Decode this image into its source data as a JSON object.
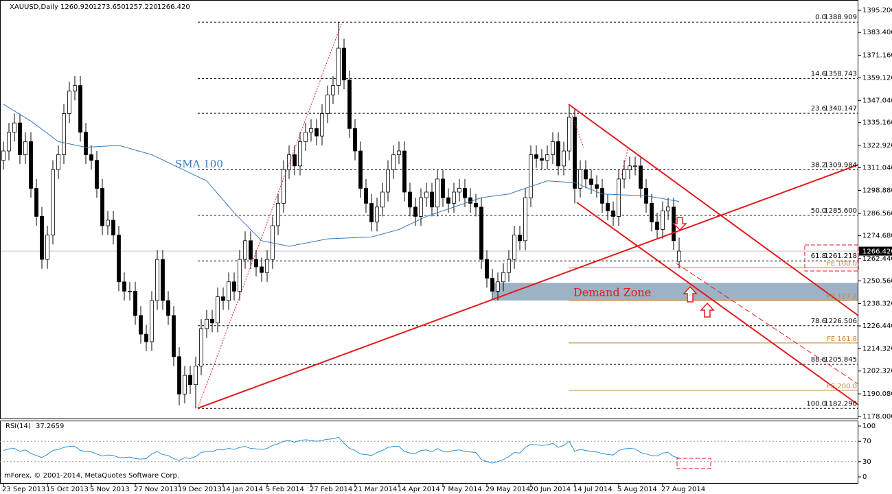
{
  "chart_data": [
    {
      "type": "candlestick",
      "symbol": "XAUUSD,Daily",
      "header_values": [
        {
          "value": 1260.92,
          "label": "1260.920"
        },
        {
          "value": 1273.65,
          "label": "1273.650"
        },
        {
          "value": 1257.22,
          "label": "1257.220"
        },
        {
          "value": 1266.42,
          "label": "1266.420"
        }
      ],
      "categories": [
        "23 Sep 2013",
        null,
        null,
        null,
        null,
        null,
        null,
        null,
        "15 Oct 2013",
        null,
        null,
        null,
        null,
        null,
        null,
        null,
        "5 Nov 2013",
        null,
        null,
        null,
        null,
        null,
        null,
        null,
        "27 Nov 2013",
        null,
        null,
        null,
        null,
        null,
        null,
        null,
        "19 Dec 2013",
        null,
        null,
        null,
        null,
        null,
        null,
        null,
        "14 Jan 2014",
        null,
        null,
        null,
        null,
        null,
        null,
        null,
        "5 Feb 2014",
        null,
        null,
        null,
        null,
        null,
        null,
        null,
        "27 Feb 2014",
        null,
        null,
        null,
        null,
        null,
        null,
        null,
        "21 Mar 2014",
        null,
        null,
        null,
        null,
        null,
        null,
        null,
        "14 Apr 2014",
        null,
        null,
        null,
        null,
        null,
        null,
        null,
        "7 May 2014",
        null,
        null,
        null,
        null,
        null,
        null,
        null,
        "29 May 2014",
        null,
        null,
        null,
        null,
        null,
        null,
        null,
        "20 Jun 2014",
        null,
        null,
        null,
        null,
        null,
        null,
        null,
        "14 Jul 2014",
        null,
        null,
        null,
        null,
        null,
        null,
        null,
        "5 Aug 2014",
        null,
        null,
        null,
        null,
        null,
        null,
        null,
        "27 Aug 2014",
        null,
        null,
        null
      ],
      "open": [
        1315,
        1320,
        1330,
        1335,
        1318,
        1325,
        1300,
        1285,
        1262,
        1275,
        1310,
        1318,
        1340,
        1352,
        1355,
        1330,
        1318,
        1315,
        1300,
        1280,
        1283,
        1275,
        1250,
        1245,
        1245,
        1232,
        1222,
        1218,
        1240,
        1262,
        1240,
        1232,
        1210,
        1190,
        1200,
        1195,
        1205,
        1225,
        1230,
        1228,
        1242,
        1240,
        1250,
        1245,
        1262,
        1272,
        1262,
        1258,
        1255,
        1262,
        1280,
        1292,
        1310,
        1318,
        1312,
        1325,
        1330,
        1332,
        1328,
        1340,
        1350,
        1355,
        1375,
        1358,
        1332,
        1320,
        1300,
        1292,
        1282,
        1290,
        1298,
        1310,
        1318,
        1320,
        1298,
        1290,
        1285,
        1295,
        1298,
        1290,
        1305,
        1295,
        1292,
        1298,
        1300,
        1295,
        1292,
        1290,
        1262,
        1252,
        1245,
        1250,
        1255,
        1262,
        1275,
        1272,
        1295,
        1318,
        1316,
        1315,
        1318,
        1325,
        1312,
        1320,
        1338,
        1300,
        1310,
        1305,
        1302,
        1300,
        1292,
        1288,
        1285,
        1305,
        1310,
        1312,
        1312,
        1300,
        1292,
        1282,
        1278,
        1288,
        1290,
        1260.92
      ],
      "high": [
        1325,
        1335,
        1340,
        1340,
        1330,
        1330,
        1305,
        1290,
        1280,
        1315,
        1323,
        1345,
        1357,
        1360,
        1360,
        1335,
        1323,
        1320,
        1305,
        1288,
        1288,
        1280,
        1255,
        1250,
        1250,
        1237,
        1227,
        1245,
        1267,
        1267,
        1245,
        1237,
        1215,
        1205,
        1205,
        1210,
        1230,
        1235,
        1235,
        1247,
        1247,
        1255,
        1255,
        1267,
        1277,
        1277,
        1267,
        1263,
        1267,
        1285,
        1297,
        1315,
        1323,
        1323,
        1330,
        1335,
        1337,
        1337,
        1345,
        1355,
        1360,
        1388.909,
        1380,
        1363,
        1337,
        1325,
        1305,
        1297,
        1295,
        1303,
        1315,
        1323,
        1325,
        1325,
        1303,
        1295,
        1300,
        1303,
        1303,
        1310,
        1310,
        1300,
        1303,
        1305,
        1305,
        1300,
        1297,
        1295,
        1267,
        1257,
        1255,
        1260,
        1267,
        1280,
        1280,
        1300,
        1323,
        1323,
        1321,
        1323,
        1330,
        1330,
        1325,
        1345,
        1343,
        1315,
        1315,
        1310,
        1307,
        1305,
        1297,
        1293,
        1310,
        1315,
        1317,
        1317,
        1317,
        1305,
        1297,
        1287,
        1293,
        1295,
        1295,
        1273.65
      ],
      "low": [
        1310,
        1315,
        1325,
        1313,
        1313,
        1295,
        1280,
        1257,
        1257,
        1270,
        1305,
        1313,
        1335,
        1347,
        1325,
        1313,
        1310,
        1295,
        1275,
        1275,
        1270,
        1245,
        1240,
        1240,
        1227,
        1217,
        1213,
        1213,
        1235,
        1235,
        1227,
        1205,
        1184,
        1185,
        1190,
        1182.29,
        1200,
        1220,
        1223,
        1223,
        1235,
        1235,
        1240,
        1240,
        1257,
        1257,
        1253,
        1250,
        1250,
        1257,
        1275,
        1287,
        1305,
        1307,
        1307,
        1320,
        1325,
        1323,
        1323,
        1335,
        1345,
        1350,
        1353,
        1327,
        1315,
        1295,
        1287,
        1277,
        1277,
        1285,
        1293,
        1305,
        1313,
        1293,
        1285,
        1280,
        1280,
        1290,
        1285,
        1285,
        1290,
        1287,
        1287,
        1293,
        1290,
        1287,
        1285,
        1257,
        1247,
        1240,
        1240,
        1245,
        1250,
        1257,
        1267,
        1267,
        1290,
        1311,
        1310,
        1310,
        1313,
        1307,
        1307,
        1315,
        1292,
        1295,
        1300,
        1297,
        1295,
        1287,
        1283,
        1280,
        1280,
        1300,
        1305,
        1307,
        1295,
        1287,
        1277,
        1273,
        1273,
        1283,
        1267,
        1257.22
      ],
      "close": [
        1320,
        1330,
        1335,
        1318,
        1325,
        1300,
        1285,
        1262,
        1275,
        1310,
        1318,
        1340,
        1352,
        1355,
        1330,
        1318,
        1315,
        1300,
        1280,
        1283,
        1275,
        1250,
        1245,
        1245,
        1232,
        1222,
        1218,
        1240,
        1262,
        1240,
        1232,
        1210,
        1190,
        1200,
        1195,
        1205,
        1225,
        1230,
        1228,
        1242,
        1240,
        1250,
        1245,
        1262,
        1272,
        1262,
        1258,
        1255,
        1262,
        1280,
        1292,
        1310,
        1318,
        1312,
        1325,
        1330,
        1332,
        1328,
        1340,
        1350,
        1355,
        1375,
        1358,
        1332,
        1320,
        1300,
        1292,
        1282,
        1290,
        1298,
        1310,
        1318,
        1320,
        1298,
        1290,
        1285,
        1295,
        1298,
        1290,
        1305,
        1295,
        1292,
        1298,
        1300,
        1295,
        1292,
        1290,
        1262,
        1252,
        1245,
        1250,
        1255,
        1262,
        1275,
        1272,
        1295,
        1318,
        1316,
        1315,
        1318,
        1325,
        1312,
        1320,
        1338,
        1300,
        1310,
        1305,
        1302,
        1300,
        1292,
        1288,
        1285,
        1305,
        1310,
        1312,
        1312,
        1300,
        1292,
        1282,
        1278,
        1288,
        1290,
        1272,
        1266.42
      ],
      "overlays": [
        {
          "name": "SMA 100",
          "color": "#3a7ab8",
          "x": [
            0,
            5,
            10,
            15,
            21,
            27,
            32,
            37,
            42,
            47,
            52,
            59,
            67,
            72,
            77,
            82,
            87,
            92,
            99,
            104,
            109,
            117,
            123
          ],
          "values": [
            1345,
            1336,
            1325,
            1322,
            1323,
            1318,
            1311,
            1304,
            1287,
            1272,
            1269,
            1273,
            1274,
            1278,
            1285,
            1290,
            1295,
            1297,
            1304,
            1303,
            1297,
            1296,
            1293
          ]
        }
      ],
      "fib_levels": [
        {
          "ratio": "0.0",
          "value": 1388.909
        },
        {
          "ratio": "14.6",
          "value": 1358.743
        },
        {
          "ratio": "23.6",
          "value": 1340.147
        },
        {
          "ratio": "38.2",
          "value": 1309.984
        },
        {
          "ratio": "50.0",
          "value": {
            "value": 1285.6,
            "label": "1285.600"
          }
        },
        {
          "ratio": "61.8",
          "value": 1261.218
        },
        {
          "ratio": "78.6",
          "value": 1226.506
        },
        {
          "ratio": "88.6",
          "value": 1205.845
        },
        {
          "ratio": "100.0",
          "value": {
            "value": 1182.29,
            "label": "1182.290"
          }
        }
      ],
      "fe_levels": [
        {
          "label": "FE 100.0",
          "value": 1257.6
        },
        {
          "label": "FE 127.2",
          "value": 1240
        },
        {
          "label": "FE 161.8",
          "value": 1217.3
        },
        {
          "label": "FE 200.0",
          "value": 1192
        }
      ],
      "fe_color": "#c8812e",
      "demand_zone": {
        "label": "Demand Zone",
        "range": [
          1240,
          1249.5
        ],
        "color": "#9db2c4"
      },
      "last_price": {
        "value": 1266.42,
        "label": "1266.420"
      },
      "ylim": [
        1176.9,
        1400
      ],
      "yticks": [
        {
          "value": 1395.2,
          "label": "1395.200"
        },
        {
          "value": 1383.4,
          "label": "1383.400"
        },
        {
          "value": 1371.16,
          "label": "1371.160"
        },
        {
          "value": 1359.12,
          "label": "1359.120"
        },
        {
          "value": 1347.04,
          "label": "1347.040"
        },
        {
          "value": 1335.16,
          "label": "1335.160"
        },
        {
          "value": 1322.92,
          "label": "1322.920"
        },
        {
          "value": 1311.04,
          "label": "1311.040"
        },
        {
          "value": 1298.88,
          "label": "1298.880"
        },
        {
          "value": 1286.56,
          "label": "1286.560"
        },
        {
          "value": 1274.68,
          "label": "1274.680"
        },
        {
          "value": 1262.44,
          "label": "1262.440"
        },
        {
          "value": 1250.56,
          "label": "1250.560"
        },
        {
          "value": 1238.32,
          "label": "1238.320"
        },
        {
          "value": 1226.44,
          "label": "1226.440"
        },
        {
          "value": 1214.32,
          "label": "1214.320"
        },
        {
          "value": 1202.32,
          "label": "1202.320"
        },
        {
          "value": 1190.08,
          "label": "1190.080"
        },
        {
          "value": 1178,
          "label": "1178.000"
        }
      ],
      "copyright": "mForex, © 2001-2014, MetaQuotes Software Corp."
    },
    {
      "type": "line",
      "name": "RSI(14)",
      "color": "#2b8fd6",
      "values": [
        52,
        55,
        56,
        50,
        53,
        46,
        42,
        38,
        44,
        52,
        54,
        58,
        60,
        60,
        52,
        50,
        49,
        45,
        41,
        43,
        42,
        38,
        38,
        39,
        36,
        35,
        36,
        45,
        50,
        44,
        42,
        36,
        32,
        38,
        36,
        40,
        48,
        50,
        49,
        54,
        53,
        56,
        54,
        58,
        60,
        56,
        55,
        54,
        56,
        62,
        65,
        70,
        72,
        68,
        72,
        73,
        72,
        70,
        72,
        74,
        75,
        78,
        66,
        56,
        52,
        45,
        44,
        42,
        48,
        52,
        58,
        60,
        60,
        50,
        47,
        46,
        52,
        53,
        49,
        56,
        50,
        49,
        52,
        53,
        50,
        49,
        48,
        34,
        30,
        27,
        30,
        34,
        40,
        48,
        47,
        58,
        64,
        63,
        62,
        63,
        66,
        58,
        62,
        70,
        50,
        54,
        52,
        50,
        49,
        46,
        44,
        43,
        52,
        55,
        56,
        55,
        48,
        45,
        42,
        41,
        47,
        48,
        40,
        37.2659
      ],
      "ylim": [
        0,
        100
      ],
      "yticks": [
        100,
        70,
        30,
        0
      ]
    }
  ]
}
